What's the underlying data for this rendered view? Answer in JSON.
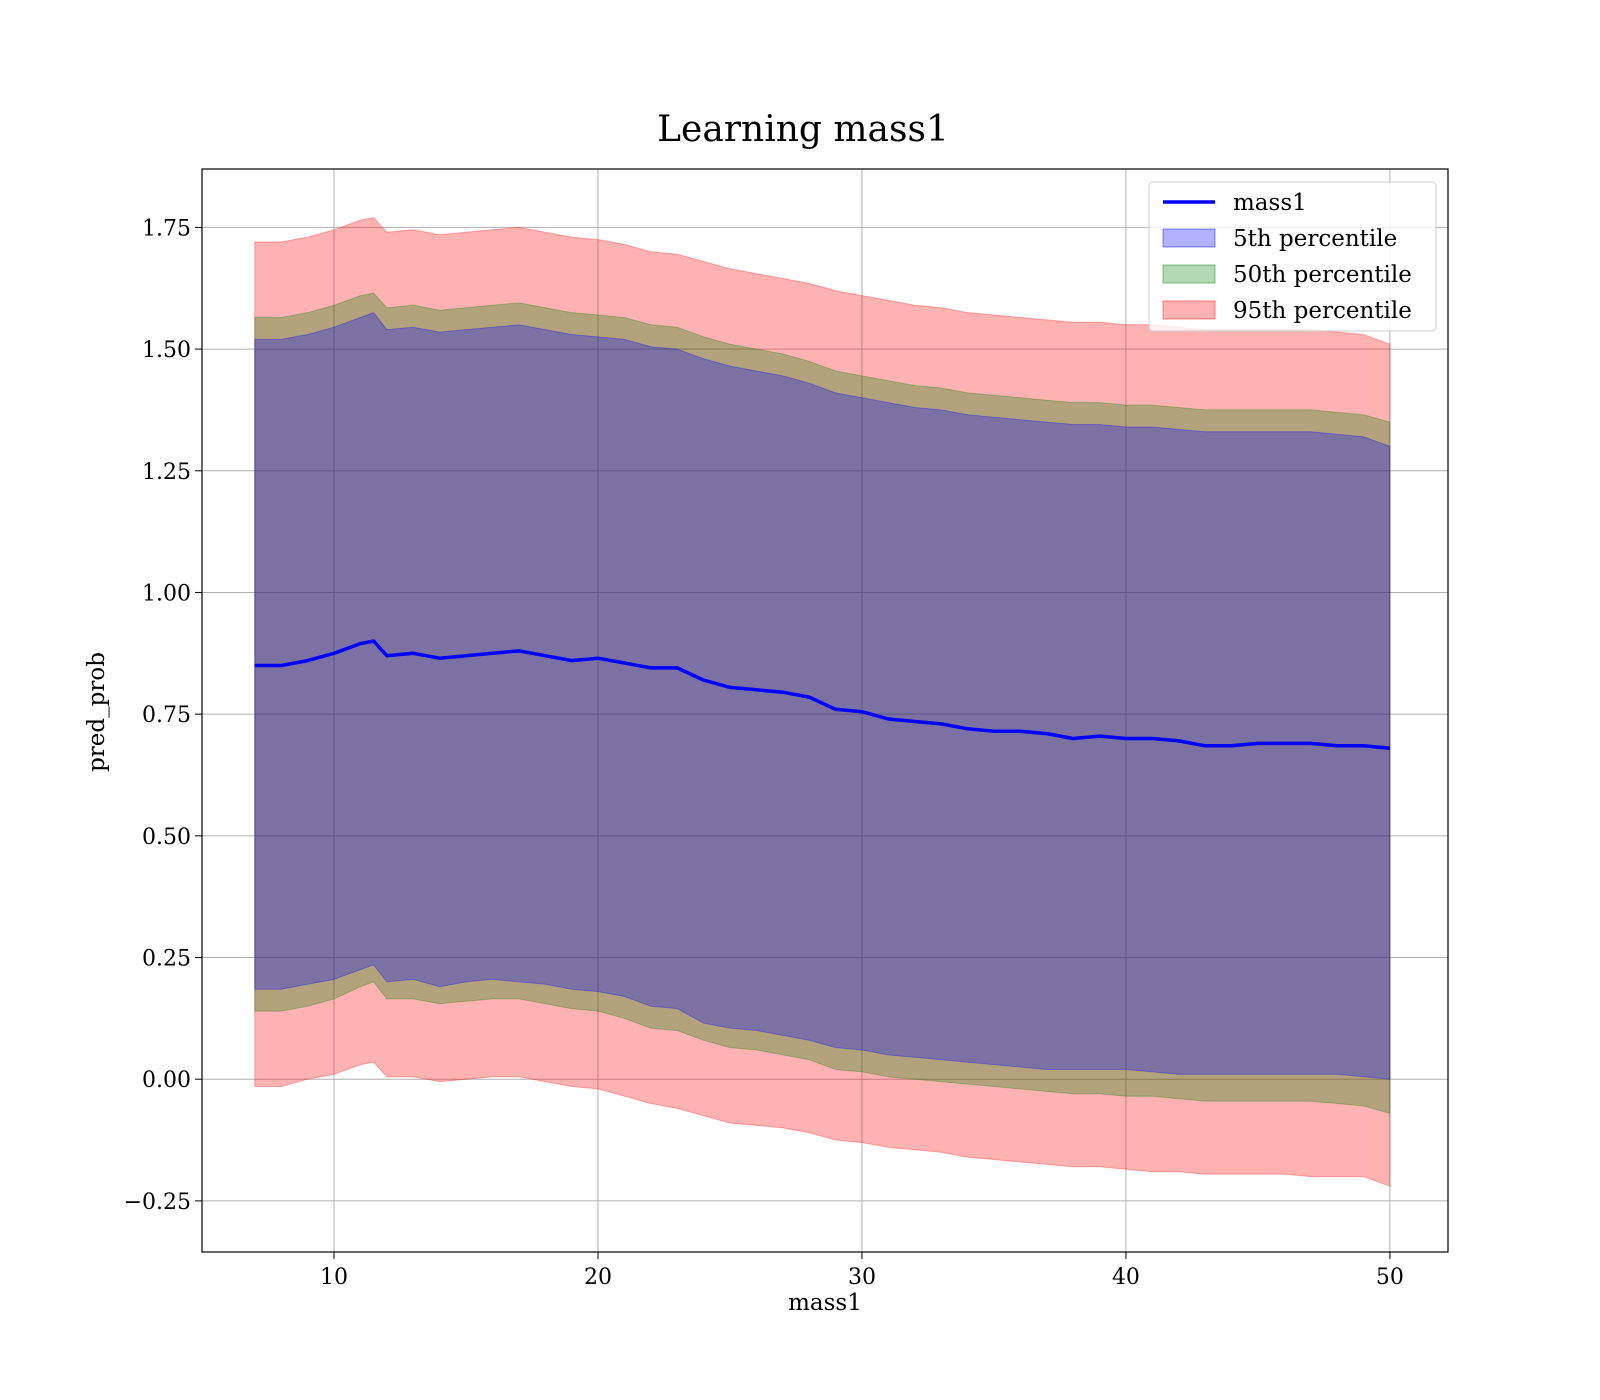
{
  "chart_data": {
    "type": "line",
    "title": "Learning mass1",
    "xlabel": "mass1",
    "ylabel": "pred_prob",
    "xlim": [
      5,
      52.2
    ],
    "ylim": [
      -0.355,
      1.87
    ],
    "xticks": [
      10,
      20,
      30,
      40,
      50
    ],
    "xtick_labels": [
      "10",
      "20",
      "30",
      "40",
      "50"
    ],
    "yticks": [
      -0.25,
      0,
      0.25,
      0.5,
      0.75,
      1.0,
      1.25,
      1.5,
      1.75
    ],
    "ytick_labels": [
      "−0.25",
      "0.00",
      "0.25",
      "0.50",
      "0.75",
      "1.00",
      "1.25",
      "1.50",
      "1.75"
    ],
    "grid": true,
    "legend_position": "top-right",
    "x": [
      7.0,
      8.0,
      9.0,
      10.0,
      11.0,
      11.5,
      12.0,
      13.0,
      14.0,
      15.0,
      16.0,
      17.0,
      18.0,
      19.0,
      20.0,
      21.0,
      22.0,
      23.0,
      24.0,
      25.0,
      26.0,
      27.0,
      28.0,
      29.0,
      30.0,
      31.0,
      32.0,
      33.0,
      34.0,
      35.0,
      36.0,
      37.0,
      38.0,
      39.0,
      40.0,
      41.0,
      42.0,
      43.0,
      44.0,
      45.0,
      46.0,
      47.0,
      48.0,
      49.0,
      50.0
    ],
    "series": [
      {
        "name": "mass1",
        "kind": "line",
        "color": "#0000ff",
        "values": [
          0.85,
          0.85,
          0.86,
          0.875,
          0.895,
          0.9,
          0.87,
          0.875,
          0.865,
          0.87,
          0.875,
          0.88,
          0.87,
          0.86,
          0.865,
          0.855,
          0.845,
          0.845,
          0.82,
          0.805,
          0.8,
          0.795,
          0.785,
          0.76,
          0.755,
          0.74,
          0.735,
          0.73,
          0.72,
          0.715,
          0.715,
          0.71,
          0.7,
          0.705,
          0.7,
          0.7,
          0.695,
          0.685,
          0.685,
          0.69,
          0.69,
          0.69,
          0.685,
          0.685,
          0.68
        ]
      },
      {
        "name": "5th percentile",
        "kind": "band",
        "color": "#0000ff",
        "opacity": 0.3,
        "lower": [
          0.185,
          0.185,
          0.195,
          0.205,
          0.225,
          0.235,
          0.2,
          0.205,
          0.19,
          0.2,
          0.205,
          0.2,
          0.195,
          0.185,
          0.18,
          0.17,
          0.15,
          0.145,
          0.115,
          0.105,
          0.1,
          0.09,
          0.08,
          0.065,
          0.06,
          0.05,
          0.045,
          0.04,
          0.035,
          0.03,
          0.025,
          0.02,
          0.02,
          0.02,
          0.02,
          0.015,
          0.01,
          0.01,
          0.01,
          0.01,
          0.01,
          0.01,
          0.01,
          0.005,
          0.0
        ],
        "upper": [
          1.52,
          1.52,
          1.53,
          1.545,
          1.565,
          1.575,
          1.54,
          1.545,
          1.535,
          1.54,
          1.545,
          1.55,
          1.54,
          1.53,
          1.525,
          1.52,
          1.505,
          1.5,
          1.48,
          1.465,
          1.455,
          1.445,
          1.43,
          1.41,
          1.4,
          1.39,
          1.38,
          1.375,
          1.365,
          1.36,
          1.355,
          1.35,
          1.345,
          1.345,
          1.34,
          1.34,
          1.335,
          1.33,
          1.33,
          1.33,
          1.33,
          1.33,
          1.325,
          1.32,
          1.3
        ]
      },
      {
        "name": "50th percentile",
        "kind": "band",
        "color": "#008000",
        "opacity": 0.3,
        "lower": [
          0.14,
          0.14,
          0.15,
          0.165,
          0.19,
          0.2,
          0.165,
          0.165,
          0.155,
          0.16,
          0.165,
          0.165,
          0.155,
          0.145,
          0.14,
          0.125,
          0.105,
          0.1,
          0.08,
          0.065,
          0.06,
          0.05,
          0.04,
          0.02,
          0.015,
          0.005,
          0.0,
          -0.005,
          -0.01,
          -0.015,
          -0.02,
          -0.025,
          -0.03,
          -0.03,
          -0.035,
          -0.035,
          -0.04,
          -0.045,
          -0.045,
          -0.045,
          -0.045,
          -0.045,
          -0.05,
          -0.055,
          -0.07
        ],
        "upper": [
          1.565,
          1.565,
          1.575,
          1.59,
          1.61,
          1.615,
          1.585,
          1.59,
          1.58,
          1.585,
          1.59,
          1.595,
          1.585,
          1.575,
          1.57,
          1.565,
          1.55,
          1.545,
          1.525,
          1.51,
          1.5,
          1.49,
          1.475,
          1.455,
          1.445,
          1.435,
          1.425,
          1.42,
          1.41,
          1.405,
          1.4,
          1.395,
          1.39,
          1.39,
          1.385,
          1.385,
          1.38,
          1.375,
          1.375,
          1.375,
          1.375,
          1.375,
          1.37,
          1.365,
          1.35
        ]
      },
      {
        "name": "95th percentile",
        "kind": "band",
        "color": "#ff0000",
        "opacity": 0.3,
        "lower": [
          -0.015,
          -0.015,
          0.0,
          0.01,
          0.03,
          0.035,
          0.005,
          0.005,
          -0.005,
          0.0,
          0.005,
          0.005,
          -0.005,
          -0.015,
          -0.02,
          -0.035,
          -0.05,
          -0.06,
          -0.075,
          -0.09,
          -0.095,
          -0.1,
          -0.11,
          -0.125,
          -0.13,
          -0.14,
          -0.145,
          -0.15,
          -0.16,
          -0.165,
          -0.17,
          -0.175,
          -0.18,
          -0.18,
          -0.185,
          -0.19,
          -0.19,
          -0.195,
          -0.195,
          -0.195,
          -0.195,
          -0.2,
          -0.2,
          -0.2,
          -0.22
        ],
        "upper": [
          1.72,
          1.72,
          1.73,
          1.745,
          1.765,
          1.77,
          1.74,
          1.745,
          1.735,
          1.74,
          1.745,
          1.75,
          1.74,
          1.73,
          1.725,
          1.715,
          1.7,
          1.695,
          1.68,
          1.665,
          1.655,
          1.645,
          1.635,
          1.62,
          1.61,
          1.6,
          1.59,
          1.585,
          1.575,
          1.57,
          1.565,
          1.56,
          1.555,
          1.555,
          1.55,
          1.55,
          1.545,
          1.54,
          1.54,
          1.54,
          1.54,
          1.54,
          1.535,
          1.53,
          1.51
        ]
      }
    ]
  }
}
